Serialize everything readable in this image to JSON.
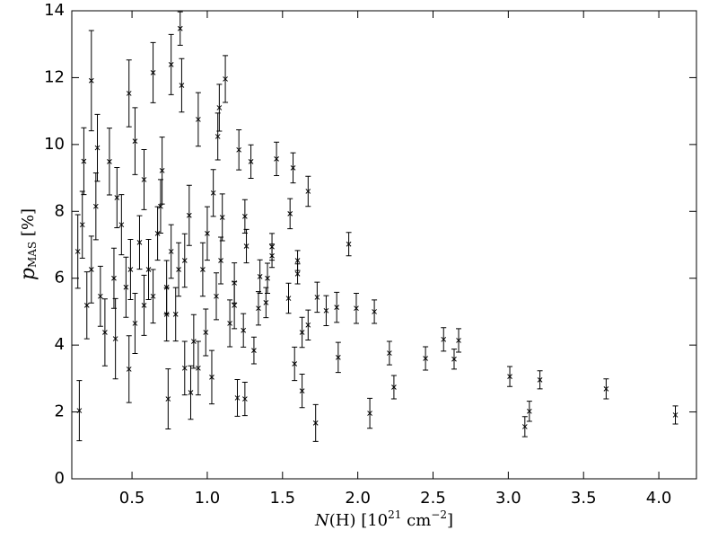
{
  "chart_data": {
    "type": "scatter",
    "xlabel": {
      "symbol": "N",
      "paren": "(H) [10",
      "exp": "21",
      "unit": " cm",
      "unitexp": "−2",
      "close": "]"
    },
    "ylabel": {
      "symbol": "p",
      "subscript": "MAS",
      "unit": " [%]"
    },
    "xlim": [
      0.1,
      4.25
    ],
    "ylim": [
      0,
      14
    ],
    "xticks": [
      {
        "value": 0.5,
        "label": "0.5"
      },
      {
        "value": 1.0,
        "label": "1.0"
      },
      {
        "value": 1.5,
        "label": "1.5"
      },
      {
        "value": 2.0,
        "label": "2.0"
      },
      {
        "value": 2.5,
        "label": "2.5"
      },
      {
        "value": 3.0,
        "label": "3.0"
      },
      {
        "value": 3.5,
        "label": "3.5"
      },
      {
        "value": 4.0,
        "label": "4.0"
      }
    ],
    "yticks": [
      0,
      2,
      4,
      6,
      8,
      10,
      12,
      14
    ],
    "series": [
      {
        "color": "#000000",
        "x": [
          4.11,
          3.65,
          3.21,
          3.14,
          3.11,
          3.01,
          2.67,
          2.64,
          2.57,
          2.45,
          2.24,
          2.21,
          2.11,
          2.08,
          1.99,
          1.94,
          1.87,
          1.86,
          1.79,
          1.73,
          1.72,
          1.67,
          1.67,
          1.63,
          1.63,
          1.57,
          1.55,
          1.6,
          1.6,
          1.58,
          1.54,
          1.46,
          1.43,
          1.43,
          1.4,
          1.39,
          1.35,
          1.34,
          1.31,
          1.29,
          1.26,
          1.25,
          1.25,
          1.21,
          1.2,
          1.24,
          1.18,
          1.12,
          1.1,
          1.08,
          1.07,
          1.04,
          1.03,
          0.99,
          0.94,
          0.89,
          0.82,
          0.83,
          0.76,
          0.74,
          0.64,
          0.48,
          0.48,
          0.23,
          0.15,
          0.39,
          0.52,
          0.35,
          0.18,
          0.27,
          0.7,
          0.88,
          0.23,
          0.29,
          0.38,
          0.43,
          0.55,
          0.58,
          0.61,
          0.67,
          0.73,
          0.79,
          0.85,
          0.91,
          0.97,
          1.06,
          1.15,
          0.17,
          0.2,
          0.32,
          0.4,
          0.49,
          0.52,
          0.64,
          0.69,
          0.76,
          0.81,
          0.85,
          0.94,
          1.0,
          1.09,
          1.18,
          0.14,
          0.26,
          0.46,
          0.58,
          0.73
        ],
        "values": [
          1.91,
          2.69,
          2.96,
          2.02,
          1.56,
          3.06,
          4.14,
          3.58,
          4.17,
          3.6,
          2.74,
          3.76,
          5.0,
          1.96,
          5.1,
          7.02,
          3.63,
          5.13,
          5.03,
          5.43,
          1.67,
          8.6,
          4.6,
          4.38,
          2.63,
          9.3,
          7.93,
          6.53,
          6.13,
          3.44,
          5.4,
          9.57,
          6.94,
          6.67,
          6.0,
          5.27,
          6.05,
          5.1,
          3.84,
          9.49,
          6.96,
          7.85,
          2.39,
          9.84,
          2.42,
          4.44,
          5.86,
          11.96,
          7.82,
          11.1,
          10.24,
          8.55,
          3.04,
          4.38,
          10.75,
          2.58,
          13.47,
          11.77,
          12.39,
          2.39,
          12.15,
          11.53,
          3.28,
          11.91,
          2.04,
          4.19,
          10.1,
          9.49,
          9.5,
          9.9,
          9.22,
          7.88,
          6.26,
          5.46,
          6.0,
          7.6,
          7.07,
          5.19,
          6.26,
          7.34,
          5.73,
          4.92,
          6.53,
          4.11,
          6.26,
          5.46,
          4.65,
          7.6,
          5.19,
          4.38,
          8.41,
          6.26,
          4.65,
          5.46,
          8.15,
          6.8,
          6.26,
          3.31,
          3.31,
          7.34,
          6.53,
          5.19,
          6.8,
          8.15,
          5.73,
          8.95,
          4.92
        ],
        "errors": [
          0.27,
          0.3,
          0.27,
          0.3,
          0.3,
          0.3,
          0.35,
          0.3,
          0.35,
          0.35,
          0.35,
          0.35,
          0.35,
          0.45,
          0.45,
          0.35,
          0.45,
          0.45,
          0.45,
          0.45,
          0.55,
          0.45,
          0.45,
          0.45,
          0.5,
          0.45,
          0.45,
          0.3,
          0.3,
          0.5,
          0.45,
          0.5,
          0.4,
          0.35,
          0.45,
          0.45,
          0.5,
          0.5,
          0.4,
          0.5,
          0.5,
          0.5,
          0.5,
          0.6,
          0.55,
          0.5,
          0.6,
          0.7,
          0.7,
          0.7,
          0.7,
          0.7,
          0.8,
          0.7,
          0.8,
          0.8,
          0.5,
          0.8,
          0.9,
          0.9,
          0.9,
          1.0,
          1.0,
          1.5,
          0.9,
          1.2,
          1.0,
          1.0,
          1.0,
          1.0,
          1.0,
          0.9,
          1.0,
          0.9,
          0.9,
          0.9,
          0.8,
          0.9,
          0.9,
          0.8,
          0.8,
          0.8,
          0.8,
          0.8,
          0.8,
          0.7,
          0.7,
          1.0,
          1.0,
          1.0,
          0.9,
          0.9,
          0.9,
          0.8,
          0.8,
          0.8,
          0.8,
          0.8,
          0.8,
          0.8,
          0.7,
          0.7,
          1.1,
          1.0,
          0.9,
          0.9,
          0.8
        ]
      }
    ]
  }
}
